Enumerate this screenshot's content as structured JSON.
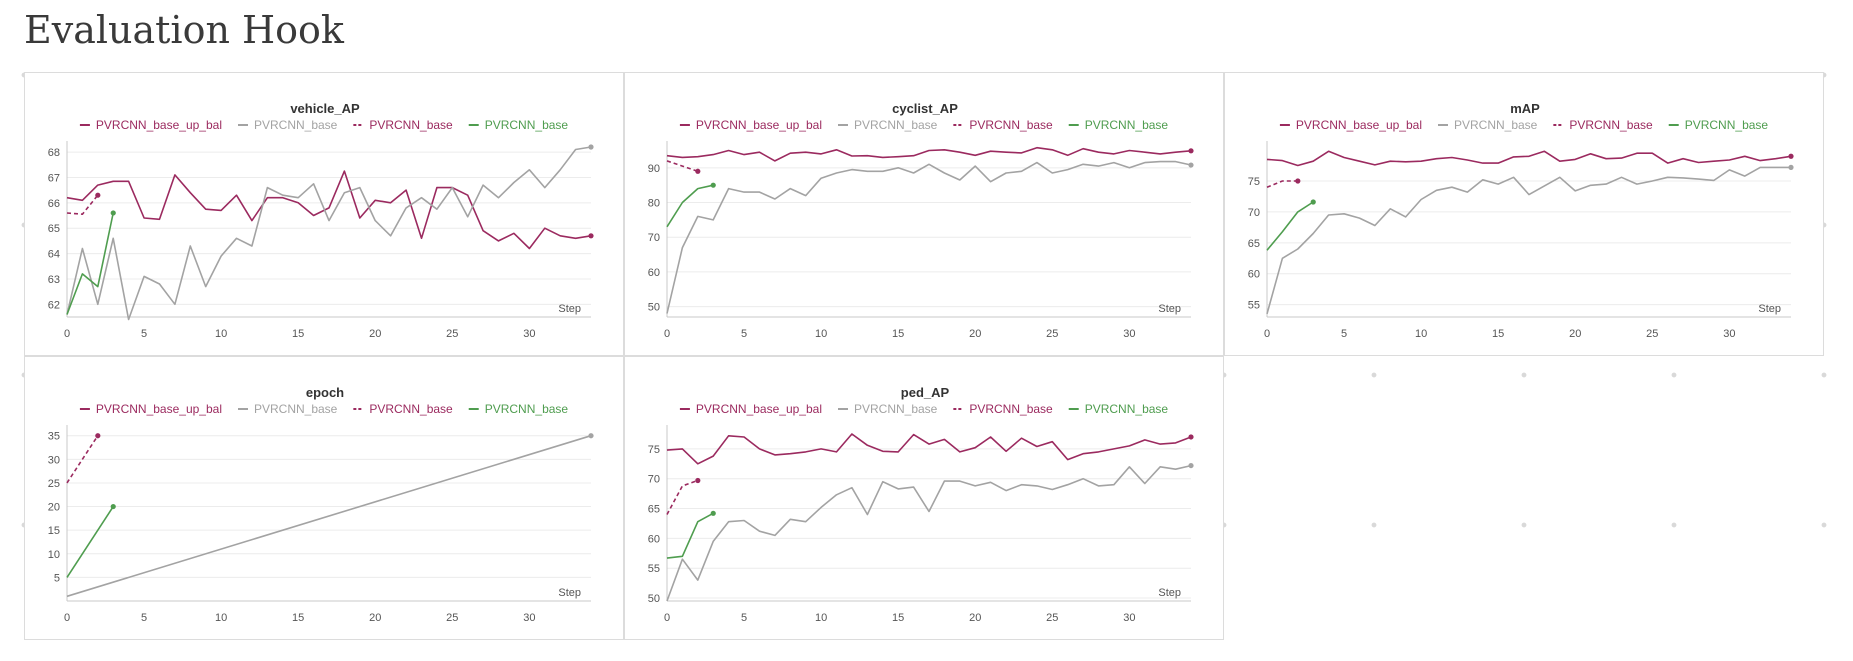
{
  "section": {
    "title": "Evaluation Hook"
  },
  "colors": {
    "maroon": "#9b2a5f",
    "gray": "#a3a3a3",
    "green": "#4f9d4f"
  },
  "chart_data": [
    {
      "type": "line",
      "title": "vehicle_AP",
      "xlabel": "Step",
      "ylabel": "",
      "xlim": [
        0,
        34
      ],
      "ylim": [
        61.5,
        68.2
      ],
      "xticks": [
        0,
        5,
        10,
        15,
        20,
        25,
        30
      ],
      "yticks": [
        62,
        63,
        64,
        65,
        66,
        67,
        68
      ],
      "grid": true,
      "legend": "top",
      "series": [
        {
          "name": "PVRCNN_base_up_bal",
          "color": "maroon",
          "dash": false,
          "end_dot": true,
          "x": [
            0,
            1,
            2,
            3,
            4,
            5,
            6,
            7,
            8,
            9,
            10,
            11,
            12,
            13,
            14,
            15,
            16,
            17,
            18,
            19,
            20,
            21,
            22,
            23,
            24,
            25,
            26,
            27,
            28,
            29,
            30,
            31,
            32,
            33,
            34
          ],
          "y": [
            66.2,
            66.1,
            66.7,
            66.85,
            66.85,
            65.4,
            65.35,
            67.1,
            66.4,
            65.75,
            65.7,
            66.3,
            65.3,
            66.2,
            66.2,
            66.0,
            65.5,
            65.8,
            67.25,
            65.4,
            66.1,
            66.0,
            66.5,
            64.6,
            66.6,
            66.6,
            66.3,
            64.9,
            64.5,
            64.8,
            64.2,
            65.0,
            64.7,
            64.6,
            64.7
          ]
        },
        {
          "name": "PVRCNN_base",
          "color": "gray",
          "dash": false,
          "end_dot": true,
          "x": [
            0,
            1,
            2,
            3,
            4,
            5,
            6,
            7,
            8,
            9,
            10,
            11,
            12,
            13,
            14,
            15,
            16,
            17,
            18,
            19,
            20,
            21,
            22,
            23,
            24,
            25,
            26,
            27,
            28,
            29,
            30,
            31,
            32,
            33,
            34
          ],
          "y": [
            61.6,
            64.2,
            62.0,
            64.6,
            61.4,
            63.1,
            62.8,
            62.0,
            64.3,
            62.7,
            63.9,
            64.6,
            64.3,
            66.6,
            66.3,
            66.2,
            66.75,
            65.3,
            66.4,
            66.6,
            65.3,
            64.7,
            65.8,
            66.2,
            65.75,
            66.6,
            65.45,
            66.7,
            66.2,
            66.8,
            67.3,
            66.6,
            67.3,
            68.1,
            68.2
          ]
        },
        {
          "name": "PVRCNN_base",
          "color": "maroon",
          "dash": true,
          "end_dot": true,
          "x": [
            0,
            1,
            2
          ],
          "y": [
            65.6,
            65.55,
            66.3
          ]
        },
        {
          "name": "PVRCNN_base",
          "color": "green",
          "dash": false,
          "end_dot": true,
          "x": [
            0,
            1,
            2,
            3
          ],
          "y": [
            61.6,
            63.2,
            62.7,
            65.6
          ]
        }
      ]
    },
    {
      "type": "line",
      "title": "cyclist_AP",
      "xlabel": "Step",
      "ylabel": "",
      "xlim": [
        0,
        34
      ],
      "ylim": [
        47,
        96
      ],
      "xticks": [
        0,
        5,
        10,
        15,
        20,
        25,
        30
      ],
      "yticks": [
        50,
        60,
        70,
        80,
        90
      ],
      "grid": true,
      "legend": "top",
      "series": [
        {
          "name": "PVRCNN_base_up_bal",
          "color": "maroon",
          "dash": false,
          "end_dot": true,
          "x": [
            0,
            1,
            2,
            3,
            4,
            5,
            6,
            7,
            8,
            9,
            10,
            11,
            12,
            13,
            14,
            15,
            16,
            17,
            18,
            19,
            20,
            21,
            22,
            23,
            24,
            25,
            26,
            27,
            28,
            29,
            30,
            31,
            32,
            33,
            34
          ],
          "y": [
            93.5,
            93.0,
            93.2,
            93.8,
            95.0,
            93.8,
            94.5,
            92.0,
            94.2,
            94.5,
            94.0,
            95.2,
            93.4,
            93.5,
            93.0,
            93.2,
            93.5,
            95.0,
            95.2,
            94.5,
            93.6,
            94.8,
            94.5,
            94.3,
            95.8,
            95.2,
            93.6,
            95.5,
            94.5,
            94.0,
            95.0,
            94.5,
            94.0,
            94.5,
            94.9
          ]
        },
        {
          "name": "PVRCNN_base",
          "color": "gray",
          "dash": false,
          "end_dot": true,
          "x": [
            0,
            1,
            2,
            3,
            4,
            5,
            6,
            7,
            8,
            9,
            10,
            11,
            12,
            13,
            14,
            15,
            16,
            17,
            18,
            19,
            20,
            21,
            22,
            23,
            24,
            25,
            26,
            27,
            28,
            29,
            30,
            31,
            32,
            33,
            34
          ],
          "y": [
            48.0,
            67.0,
            76.0,
            75.0,
            84.0,
            83.0,
            83.0,
            81.0,
            84.0,
            82.0,
            87.0,
            88.5,
            89.5,
            89.0,
            89.0,
            90.0,
            88.5,
            91.0,
            88.5,
            86.5,
            90.5,
            86.0,
            88.5,
            89.0,
            91.5,
            88.5,
            89.5,
            91.0,
            90.5,
            91.5,
            90.0,
            91.5,
            91.8,
            91.8,
            90.8
          ]
        },
        {
          "name": "PVRCNN_base",
          "color": "maroon",
          "dash": true,
          "end_dot": true,
          "x": [
            0,
            1,
            2
          ],
          "y": [
            92.0,
            90.5,
            89.0
          ]
        },
        {
          "name": "PVRCNN_base",
          "color": "green",
          "dash": false,
          "end_dot": true,
          "x": [
            0,
            1,
            2,
            3
          ],
          "y": [
            73.0,
            80.0,
            84.0,
            85.0
          ]
        }
      ]
    },
    {
      "type": "line",
      "title": "mAP",
      "xlabel": "Step",
      "ylabel": "",
      "xlim": [
        0,
        34
      ],
      "ylim": [
        53,
        80.5
      ],
      "xticks": [
        0,
        5,
        10,
        15,
        20,
        25,
        30
      ],
      "yticks": [
        55,
        60,
        65,
        70,
        75
      ],
      "grid": true,
      "legend": "top",
      "series": [
        {
          "name": "PVRCNN_base_up_bal",
          "color": "maroon",
          "dash": false,
          "end_dot": true,
          "x": [
            0,
            1,
            2,
            3,
            4,
            5,
            6,
            7,
            8,
            9,
            10,
            11,
            12,
            13,
            14,
            15,
            16,
            17,
            18,
            19,
            20,
            21,
            22,
            23,
            24,
            25,
            26,
            27,
            28,
            29,
            30,
            31,
            32,
            33,
            34
          ],
          "y": [
            78.5,
            78.3,
            77.5,
            78.2,
            79.8,
            78.8,
            78.2,
            77.6,
            78.2,
            78.1,
            78.2,
            78.6,
            78.8,
            78.4,
            77.9,
            77.9,
            78.9,
            79.0,
            79.8,
            78.2,
            78.5,
            79.4,
            78.6,
            78.7,
            79.5,
            79.5,
            77.9,
            78.6,
            78.0,
            78.2,
            78.4,
            79.0,
            78.3,
            78.6,
            79.0
          ]
        },
        {
          "name": "PVRCNN_base",
          "color": "gray",
          "dash": false,
          "end_dot": true,
          "x": [
            0,
            1,
            2,
            3,
            4,
            5,
            6,
            7,
            8,
            9,
            10,
            11,
            12,
            13,
            14,
            15,
            16,
            17,
            18,
            19,
            20,
            21,
            22,
            23,
            24,
            25,
            26,
            27,
            28,
            29,
            30,
            31,
            32,
            33,
            34
          ],
          "y": [
            53.5,
            62.5,
            64.0,
            66.5,
            69.5,
            69.7,
            69.0,
            67.8,
            70.5,
            69.2,
            72.0,
            73.5,
            74.0,
            73.2,
            75.2,
            74.5,
            75.6,
            72.8,
            74.2,
            75.6,
            73.4,
            74.3,
            74.5,
            75.6,
            74.5,
            75.0,
            75.6,
            75.5,
            75.3,
            75.1,
            76.8,
            75.8,
            77.2,
            77.2,
            77.2
          ]
        },
        {
          "name": "PVRCNN_base",
          "color": "maroon",
          "dash": true,
          "end_dot": true,
          "x": [
            0,
            1,
            2
          ],
          "y": [
            74.0,
            75.0,
            75.0
          ]
        },
        {
          "name": "PVRCNN_base",
          "color": "green",
          "dash": false,
          "end_dot": true,
          "x": [
            0,
            1,
            2,
            3
          ],
          "y": [
            63.8,
            66.8,
            70.0,
            71.6
          ]
        }
      ]
    },
    {
      "type": "line",
      "title": "epoch",
      "xlabel": "Step",
      "ylabel": "",
      "xlim": [
        0,
        34
      ],
      "ylim": [
        0,
        36
      ],
      "xticks": [
        0,
        5,
        10,
        15,
        20,
        25,
        30
      ],
      "yticks": [
        5,
        10,
        15,
        20,
        25,
        30,
        35
      ],
      "grid": true,
      "legend": "top",
      "series": [
        {
          "name": "PVRCNN_base_up_bal",
          "color": "maroon",
          "dash": false,
          "end_dot": false,
          "x": [],
          "y": []
        },
        {
          "name": "PVRCNN_base",
          "color": "gray",
          "dash": false,
          "end_dot": true,
          "x": [
            0,
            34
          ],
          "y": [
            1,
            35
          ]
        },
        {
          "name": "PVRCNN_base",
          "color": "maroon",
          "dash": true,
          "end_dot": true,
          "x": [
            0,
            2
          ],
          "y": [
            25,
            35
          ]
        },
        {
          "name": "PVRCNN_base",
          "color": "green",
          "dash": false,
          "end_dot": true,
          "x": [
            0,
            3
          ],
          "y": [
            5,
            20
          ]
        }
      ]
    },
    {
      "type": "line",
      "title": "ped_AP",
      "xlabel": "Step",
      "ylabel": "",
      "xlim": [
        0,
        34
      ],
      "ylim": [
        49.5,
        78
      ],
      "xticks": [
        0,
        5,
        10,
        15,
        20,
        25,
        30
      ],
      "yticks": [
        50,
        55,
        60,
        65,
        70,
        75
      ],
      "grid": true,
      "legend": "top",
      "series": [
        {
          "name": "PVRCNN_base_up_bal",
          "color": "maroon",
          "dash": false,
          "end_dot": true,
          "x": [
            0,
            1,
            2,
            3,
            4,
            5,
            6,
            7,
            8,
            9,
            10,
            11,
            12,
            13,
            14,
            15,
            16,
            17,
            18,
            19,
            20,
            21,
            22,
            23,
            24,
            25,
            26,
            27,
            28,
            29,
            30,
            31,
            32,
            33,
            34
          ],
          "y": [
            74.8,
            75.0,
            72.5,
            73.8,
            77.2,
            77.0,
            75.0,
            74.0,
            74.2,
            74.5,
            75.0,
            74.5,
            77.5,
            75.6,
            74.6,
            74.5,
            77.4,
            75.8,
            76.6,
            74.5,
            75.2,
            77.0,
            74.6,
            76.8,
            75.4,
            76.2,
            73.2,
            74.2,
            74.5,
            75.0,
            75.5,
            76.5,
            75.8,
            76.0,
            77.0
          ]
        },
        {
          "name": "PVRCNN_base",
          "color": "gray",
          "dash": false,
          "end_dot": true,
          "x": [
            0,
            1,
            2,
            3,
            4,
            5,
            6,
            7,
            8,
            9,
            10,
            11,
            12,
            13,
            14,
            15,
            16,
            17,
            18,
            19,
            20,
            21,
            22,
            23,
            24,
            25,
            26,
            27,
            28,
            29,
            30,
            31,
            32,
            33,
            34
          ],
          "y": [
            49.5,
            56.5,
            53.0,
            59.5,
            62.8,
            63.0,
            61.2,
            60.5,
            63.2,
            62.8,
            65.2,
            67.3,
            68.5,
            64.0,
            69.5,
            68.3,
            68.6,
            64.5,
            69.6,
            69.6,
            68.8,
            69.4,
            68.0,
            69.0,
            68.8,
            68.2,
            69.0,
            70.0,
            68.8,
            69.0,
            72.0,
            69.2,
            72.0,
            71.6,
            72.2
          ]
        },
        {
          "name": "PVRCNN_base",
          "color": "maroon",
          "dash": true,
          "end_dot": true,
          "x": [
            0,
            1,
            2
          ],
          "y": [
            64.0,
            68.8,
            69.7
          ]
        },
        {
          "name": "PVRCNN_base",
          "color": "green",
          "dash": false,
          "end_dot": true,
          "x": [
            0,
            1,
            2,
            3
          ],
          "y": [
            56.7,
            57.0,
            62.8,
            64.2
          ]
        }
      ]
    }
  ]
}
